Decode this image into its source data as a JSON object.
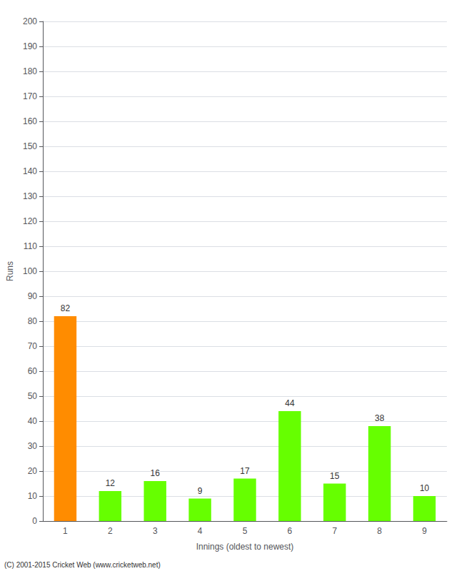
{
  "chart_data": {
    "type": "bar",
    "categories": [
      "1",
      "2",
      "3",
      "4",
      "5",
      "6",
      "7",
      "8",
      "9"
    ],
    "values": [
      82,
      12,
      16,
      9,
      17,
      44,
      15,
      38,
      10
    ],
    "colors": [
      "#FF8C00",
      "#66FF00",
      "#66FF00",
      "#66FF00",
      "#66FF00",
      "#66FF00",
      "#66FF00",
      "#66FF00",
      "#66FF00"
    ],
    "xlabel": "Innings (oldest to newest)",
    "ylabel": "Runs",
    "ylim": [
      0,
      200
    ],
    "yticks": [
      0,
      10,
      20,
      30,
      40,
      50,
      60,
      70,
      80,
      90,
      100,
      110,
      120,
      130,
      140,
      150,
      160,
      170,
      180,
      190,
      200
    ],
    "grid": true,
    "data_labels": true,
    "footer": "(C) 2001-2015 Cricket Web (www.cricketweb.net)"
  }
}
